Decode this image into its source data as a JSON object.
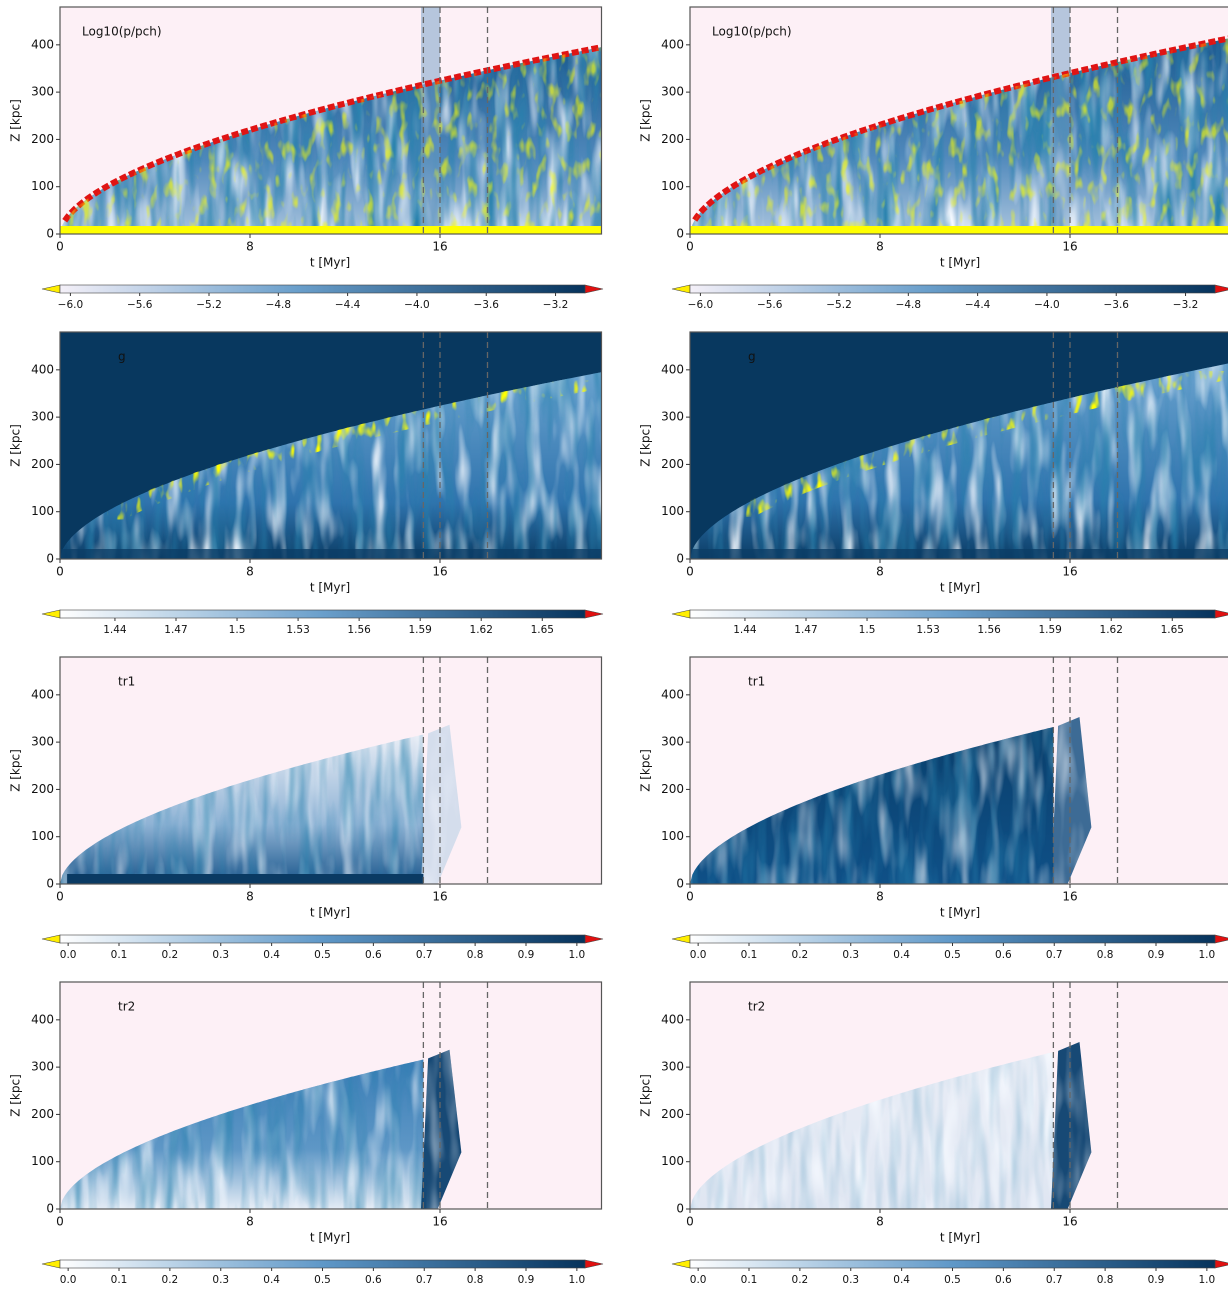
{
  "chart_data": [
    {
      "type": "heatmap",
      "label": "Log10(p/pch)",
      "xlabel": "t [Myr]",
      "ylabel": "Z [kpc]",
      "xlim": [
        0,
        22.8
      ],
      "ylim": [
        0,
        480
      ],
      "xticks": [
        0,
        8,
        16
      ],
      "yticks": [
        0,
        100,
        200,
        300,
        400
      ],
      "vlines": [
        15.3,
        16,
        18
      ],
      "colorbar": {
        "lim": [
          -6.06,
          -3.03
        ],
        "ticks": [
          {
            "value": -6.0,
            "label": "−6.0"
          },
          {
            "value": -5.6,
            "label": "−5.6"
          },
          {
            "value": -5.2,
            "label": "−5.2"
          },
          {
            "value": -4.8,
            "label": "−4.8"
          },
          {
            "value": -4.4,
            "label": "−4.4"
          },
          {
            "value": -4.0,
            "label": "−4.0"
          },
          {
            "value": -3.6,
            "label": "−3.6"
          },
          {
            "value": -3.2,
            "label": "−3.2"
          }
        ]
      }
    },
    {
      "type": "heatmap",
      "label": "Log10(p/pch)",
      "xlabel": "t [Myr]",
      "ylabel": "Z [kpc]",
      "xlim": [
        0,
        22.8
      ],
      "ylim": [
        0,
        480
      ],
      "xticks": [
        0,
        8,
        16
      ],
      "yticks": [
        0,
        100,
        200,
        300,
        400
      ],
      "vlines": [
        15.3,
        16,
        18
      ],
      "colorbar": {
        "lim": [
          -6.06,
          -3.03
        ],
        "ticks": [
          {
            "value": -6.0,
            "label": "−6.0"
          },
          {
            "value": -5.6,
            "label": "−5.6"
          },
          {
            "value": -5.2,
            "label": "−5.2"
          },
          {
            "value": -4.8,
            "label": "−4.8"
          },
          {
            "value": -4.4,
            "label": "−4.4"
          },
          {
            "value": -4.0,
            "label": "−4.0"
          },
          {
            "value": -3.6,
            "label": "−3.6"
          },
          {
            "value": -3.2,
            "label": "−3.2"
          }
        ]
      }
    },
    {
      "type": "heatmap",
      "label": "g",
      "xlabel": "t [Myr]",
      "ylabel": "Z [kpc]",
      "xlim": [
        0,
        22.8
      ],
      "ylim": [
        0,
        480
      ],
      "xticks": [
        0,
        8,
        16
      ],
      "yticks": [
        0,
        100,
        200,
        300,
        400
      ],
      "vlines": [
        15.3,
        16,
        18
      ],
      "colorbar": {
        "lim": [
          1.413,
          1.671
        ],
        "ticks": [
          1.44,
          1.47,
          1.5,
          1.53,
          1.56,
          1.59,
          1.62,
          1.65
        ]
      }
    },
    {
      "type": "heatmap",
      "label": "g",
      "xlabel": "t [Myr]",
      "ylabel": "Z [kpc]",
      "xlim": [
        0,
        22.8
      ],
      "ylim": [
        0,
        480
      ],
      "xticks": [
        0,
        8,
        16
      ],
      "yticks": [
        0,
        100,
        200,
        300,
        400
      ],
      "vlines": [
        15.3,
        16,
        18
      ],
      "colorbar": {
        "lim": [
          1.413,
          1.671
        ],
        "ticks": [
          1.44,
          1.47,
          1.5,
          1.53,
          1.56,
          1.59,
          1.62,
          1.65
        ]
      }
    },
    {
      "type": "heatmap",
      "label": "tr1",
      "xlabel": "t [Myr]",
      "ylabel": "Z [kpc]",
      "xlim": [
        0,
        22.8
      ],
      "ylim": [
        0,
        480
      ],
      "xticks": [
        0,
        8,
        16
      ],
      "yticks": [
        0,
        100,
        200,
        300,
        400
      ],
      "vlines": [
        15.3,
        16,
        18
      ],
      "colorbar": {
        "lim": [
          -0.016,
          1.016
        ],
        "ticks": [
          {
            "value": 0,
            "label": "0.0"
          },
          0.1,
          0.2,
          0.3,
          0.4,
          0.5,
          0.6,
          0.7,
          0.8,
          0.9,
          {
            "value": 1,
            "label": "1.0"
          }
        ]
      }
    },
    {
      "type": "heatmap",
      "label": "tr1",
      "xlabel": "t [Myr]",
      "ylabel": "Z [kpc]",
      "xlim": [
        0,
        22.8
      ],
      "ylim": [
        0,
        480
      ],
      "xticks": [
        0,
        8,
        16
      ],
      "yticks": [
        0,
        100,
        200,
        300,
        400
      ],
      "vlines": [
        15.3,
        16,
        18
      ],
      "colorbar": {
        "lim": [
          -0.016,
          1.016
        ],
        "ticks": [
          {
            "value": 0,
            "label": "0.0"
          },
          0.1,
          0.2,
          0.3,
          0.4,
          0.5,
          0.6,
          0.7,
          0.8,
          0.9,
          {
            "value": 1,
            "label": "1.0"
          }
        ]
      }
    },
    {
      "type": "heatmap",
      "label": "tr2",
      "xlabel": "t [Myr]",
      "ylabel": "Z [kpc]",
      "xlim": [
        0,
        22.8
      ],
      "ylim": [
        0,
        480
      ],
      "xticks": [
        0,
        8,
        16
      ],
      "yticks": [
        0,
        100,
        200,
        300,
        400
      ],
      "vlines": [
        15.3,
        16,
        18
      ],
      "colorbar": {
        "lim": [
          -0.016,
          1.016
        ],
        "ticks": [
          {
            "value": 0,
            "label": "0.0"
          },
          0.1,
          0.2,
          0.3,
          0.4,
          0.5,
          0.6,
          0.7,
          0.8,
          0.9,
          {
            "value": 1,
            "label": "1.0"
          }
        ]
      }
    },
    {
      "type": "heatmap",
      "label": "tr2",
      "xlabel": "t [Myr]",
      "ylabel": "Z [kpc]",
      "xlim": [
        0,
        22.8
      ],
      "ylim": [
        0,
        480
      ],
      "xticks": [
        0,
        8,
        16
      ],
      "yticks": [
        0,
        100,
        200,
        300,
        400
      ],
      "vlines": [
        15.3,
        16,
        18
      ],
      "colorbar": {
        "lim": [
          -0.016,
          1.016
        ],
        "ticks": [
          {
            "value": 0,
            "label": "0.0"
          },
          0.1,
          0.2,
          0.3,
          0.4,
          0.5,
          0.6,
          0.7,
          0.8,
          0.9,
          {
            "value": 1,
            "label": "1.0"
          }
        ]
      }
    }
  ]
}
